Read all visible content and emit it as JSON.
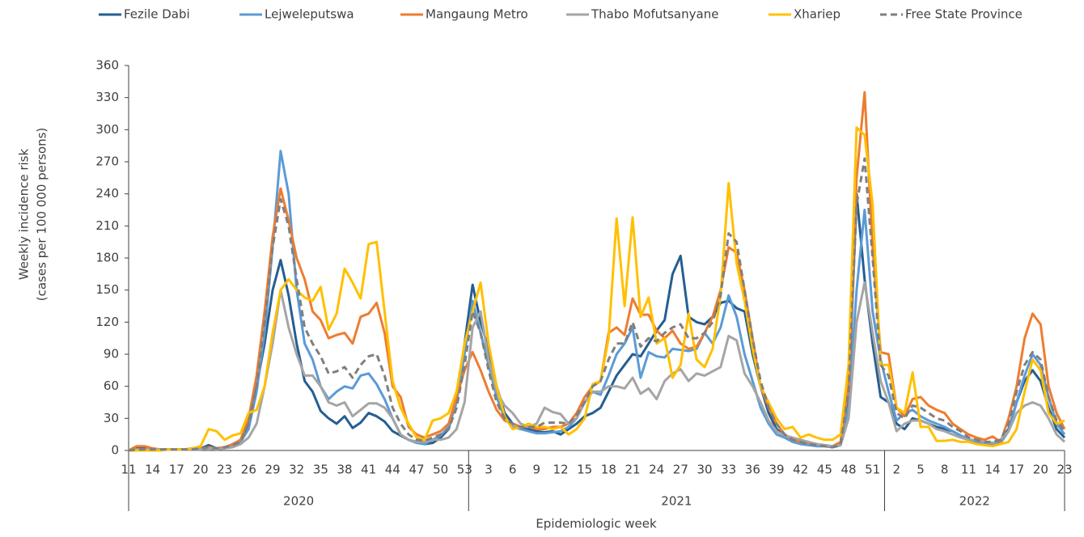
{
  "chart_data": {
    "type": "line",
    "ylabel": [
      "Weekly incidence risk",
      "(cases per 100 000 persons)"
    ],
    "xlabel": "Epidemiologic week",
    "ylim": [
      0,
      360
    ],
    "yticks": [
      0,
      30,
      60,
      90,
      120,
      150,
      180,
      210,
      240,
      270,
      300,
      330,
      360
    ],
    "grid": false,
    "legend": "top",
    "categories": [
      "11",
      null,
      null,
      "14",
      null,
      null,
      "17",
      null,
      null,
      "20",
      null,
      null,
      "23",
      null,
      null,
      "26",
      null,
      null,
      "29",
      null,
      null,
      "32",
      null,
      null,
      "35",
      null,
      null,
      "38",
      null,
      null,
      "41",
      null,
      null,
      "44",
      null,
      null,
      "47",
      null,
      null,
      "50",
      null,
      null,
      "53",
      null,
      null,
      "3",
      null,
      null,
      "6",
      null,
      null,
      "9",
      null,
      null,
      "12",
      null,
      null,
      "15",
      null,
      null,
      "18",
      null,
      null,
      "21",
      null,
      null,
      "24",
      null,
      null,
      "27",
      null,
      null,
      "30",
      null,
      null,
      "33",
      null,
      null,
      "36",
      null,
      null,
      "39",
      null,
      null,
      "42",
      null,
      null,
      "45",
      null,
      null,
      "48",
      null,
      null,
      "51",
      null,
      null,
      "2",
      null,
      null,
      "5",
      null,
      null,
      "8",
      null,
      null,
      "11",
      null,
      null,
      "14",
      null,
      null,
      "17",
      null,
      null,
      "20",
      null,
      null,
      "23"
    ],
    "years": [
      "2020",
      "2020",
      "2020",
      "2020",
      "2020",
      "2020",
      "2020",
      "2020",
      "2020",
      "2020",
      "2020",
      "2020",
      "2020",
      "2020",
      "2020",
      "2020",
      "2020",
      "2020",
      "2020",
      "2020",
      "2020",
      "2020",
      "2020",
      "2020",
      "2020",
      "2020",
      "2020",
      "2020",
      "2020",
      "2020",
      "2020",
      "2020",
      "2020",
      "2020",
      "2020",
      "2020",
      "2020",
      "2020",
      "2020",
      "2020",
      "2020",
      "2020",
      "2020",
      "2021",
      "2021",
      "2021",
      "2021",
      "2021",
      "2021",
      "2021",
      "2021",
      "2021",
      "2021",
      "2021",
      "2021",
      "2021",
      "2021",
      "2021",
      "2021",
      "2021",
      "2021",
      "2021",
      "2021",
      "2021",
      "2021",
      "2021",
      "2021",
      "2021",
      "2021",
      "2021",
      "2021",
      "2021",
      "2021",
      "2021",
      "2021",
      "2021",
      "2021",
      "2021",
      "2021",
      "2021",
      "2021",
      "2021",
      "2021",
      "2021",
      "2021",
      "2021",
      "2021",
      "2021",
      "2021",
      "2021",
      "2021",
      "2021",
      "2021",
      "2021",
      "2021",
      "2022",
      "2022",
      "2022",
      "2022",
      "2022",
      "2022",
      "2022",
      "2022",
      "2022",
      "2022",
      "2022",
      "2022",
      "2022",
      "2022",
      "2022",
      "2022",
      "2022",
      "2022",
      "2022",
      "2022",
      "2022",
      "2022",
      "2022"
    ],
    "series": [
      {
        "name": "Fezile Dabi",
        "color": "#255e91",
        "dashed": false,
        "values": [
          0,
          2,
          2,
          1,
          1,
          1,
          1,
          1,
          2,
          2,
          5,
          2,
          2,
          5,
          10,
          25,
          60,
          100,
          150,
          178,
          145,
          100,
          65,
          55,
          37,
          30,
          25,
          32,
          21,
          26,
          35,
          32,
          27,
          18,
          14,
          10,
          8,
          6,
          7,
          12,
          20,
          50,
          100,
          155,
          120,
          95,
          60,
          35,
          25,
          22,
          20,
          18,
          17,
          18,
          15,
          20,
          25,
          32,
          35,
          40,
          55,
          70,
          80,
          90,
          88,
          100,
          112,
          122,
          165,
          182,
          125,
          120,
          118,
          125,
          138,
          140,
          133,
          130,
          90,
          60,
          35,
          20,
          14,
          10,
          8,
          6,
          5,
          4,
          3,
          5,
          50,
          240,
          160,
          100,
          50,
          45,
          25,
          20,
          30,
          28,
          25,
          22,
          20,
          18,
          14,
          10,
          8,
          6,
          5,
          8,
          20,
          45,
          65,
          75,
          65,
          40,
          20,
          12
        ]
      },
      {
        "name": "Lejweleputswa",
        "color": "#5b9bd5",
        "dashed": false,
        "values": [
          0,
          1,
          1,
          1,
          1,
          1,
          1,
          1,
          1,
          2,
          3,
          2,
          3,
          5,
          8,
          20,
          55,
          110,
          190,
          280,
          240,
          150,
          100,
          85,
          60,
          48,
          55,
          60,
          58,
          70,
          72,
          62,
          48,
          30,
          15,
          10,
          7,
          6,
          10,
          14,
          22,
          45,
          90,
          140,
          110,
          80,
          50,
          30,
          22,
          20,
          18,
          16,
          16,
          17,
          18,
          22,
          30,
          45,
          55,
          52,
          70,
          90,
          100,
          115,
          68,
          92,
          88,
          87,
          95,
          94,
          93,
          95,
          110,
          100,
          115,
          145,
          125,
          90,
          65,
          40,
          25,
          15,
          12,
          8,
          6,
          5,
          4,
          4,
          3,
          6,
          40,
          150,
          225,
          130,
          85,
          55,
          28,
          35,
          38,
          32,
          28,
          25,
          22,
          18,
          14,
          10,
          8,
          6,
          5,
          7,
          18,
          45,
          70,
          90,
          80,
          50,
          25,
          15
        ]
      },
      {
        "name": "Mangaung Metro",
        "color": "#ed7d31",
        "dashed": false,
        "values": [
          0,
          4,
          4,
          2,
          1,
          1,
          1,
          1,
          2,
          2,
          3,
          2,
          3,
          6,
          10,
          30,
          70,
          130,
          200,
          245,
          215,
          180,
          160,
          130,
          122,
          105,
          108,
          110,
          100,
          125,
          128,
          138,
          110,
          60,
          50,
          22,
          15,
          12,
          15,
          18,
          25,
          50,
          75,
          92,
          75,
          55,
          38,
          28,
          25,
          22,
          22,
          20,
          20,
          22,
          22,
          25,
          35,
          50,
          60,
          65,
          110,
          115,
          108,
          142,
          127,
          127,
          112,
          105,
          112,
          100,
          95,
          97,
          110,
          125,
          150,
          190,
          185,
          150,
          105,
          60,
          40,
          25,
          15,
          10,
          8,
          7,
          6,
          5,
          4,
          8,
          60,
          255,
          335,
          190,
          92,
          90,
          40,
          32,
          48,
          50,
          42,
          38,
          35,
          25,
          20,
          15,
          12,
          10,
          13,
          8,
          30,
          60,
          105,
          128,
          118,
          60,
          35,
          20
        ]
      },
      {
        "name": "Thabo Mofutsanyane",
        "color": "#a5a5a5",
        "dashed": false,
        "values": [
          0,
          1,
          1,
          1,
          1,
          1,
          1,
          1,
          1,
          1,
          2,
          1,
          2,
          3,
          6,
          12,
          25,
          60,
          100,
          150,
          115,
          90,
          70,
          70,
          60,
          45,
          42,
          45,
          32,
          38,
          44,
          44,
          40,
          30,
          15,
          10,
          8,
          8,
          10,
          10,
          12,
          20,
          45,
          115,
          130,
          85,
          55,
          42,
          35,
          25,
          22,
          25,
          40,
          36,
          34,
          25,
          30,
          45,
          55,
          55,
          60,
          60,
          58,
          68,
          53,
          58,
          48,
          65,
          72,
          76,
          65,
          72,
          70,
          74,
          78,
          107,
          103,
          72,
          60,
          45,
          28,
          18,
          14,
          12,
          10,
          8,
          6,
          5,
          4,
          5,
          30,
          120,
          157,
          110,
          65,
          45,
          18,
          25,
          28,
          28,
          25,
          20,
          18,
          15,
          12,
          10,
          10,
          8,
          7,
          10,
          18,
          35,
          42,
          45,
          42,
          30,
          15,
          8
        ]
      },
      {
        "name": "Xhariep",
        "color": "#ffc000",
        "dashed": false,
        "values": [
          0,
          0,
          0,
          0,
          0,
          1,
          1,
          1,
          2,
          4,
          20,
          18,
          10,
          14,
          16,
          35,
          38,
          60,
          110,
          150,
          160,
          150,
          143,
          140,
          153,
          113,
          128,
          170,
          157,
          142,
          193,
          195,
          130,
          65,
          40,
          25,
          12,
          10,
          28,
          30,
          35,
          55,
          100,
          130,
          157,
          100,
          60,
          32,
          20,
          22,
          25,
          22,
          22,
          20,
          22,
          15,
          20,
          30,
          62,
          65,
          105,
          217,
          135,
          218,
          125,
          143,
          100,
          105,
          68,
          80,
          128,
          85,
          78,
          95,
          145,
          250,
          175,
          140,
          95,
          60,
          45,
          30,
          20,
          22,
          12,
          15,
          12,
          10,
          10,
          15,
          80,
          302,
          295,
          230,
          80,
          80,
          40,
          35,
          73,
          22,
          22,
          9,
          9,
          10,
          8,
          8,
          6,
          5,
          4,
          6,
          8,
          20,
          55,
          85,
          75,
          35,
          25,
          28
        ]
      },
      {
        "name": "Free State Province",
        "color": "#7f7f7f",
        "dashed": true,
        "values": [
          0,
          1,
          1,
          1,
          1,
          1,
          1,
          1,
          1,
          2,
          3,
          2,
          3,
          5,
          8,
          25,
          60,
          120,
          190,
          235,
          210,
          160,
          115,
          100,
          88,
          72,
          74,
          78,
          68,
          80,
          88,
          90,
          70,
          40,
          25,
          15,
          10,
          9,
          12,
          15,
          20,
          40,
          80,
          130,
          110,
          75,
          45,
          30,
          25,
          22,
          22,
          22,
          26,
          26,
          26,
          25,
          33,
          45,
          60,
          65,
          85,
          100,
          100,
          120,
          97,
          105,
          102,
          110,
          115,
          118,
          105,
          105,
          110,
          120,
          145,
          203,
          195,
          150,
          105,
          65,
          40,
          25,
          15,
          10,
          8,
          6,
          5,
          4,
          3,
          6,
          55,
          230,
          273,
          180,
          80,
          70,
          35,
          30,
          42,
          40,
          35,
          30,
          28,
          22,
          18,
          12,
          10,
          8,
          8,
          10,
          25,
          55,
          80,
          92,
          85,
          50,
          28,
          18
        ]
      }
    ]
  }
}
